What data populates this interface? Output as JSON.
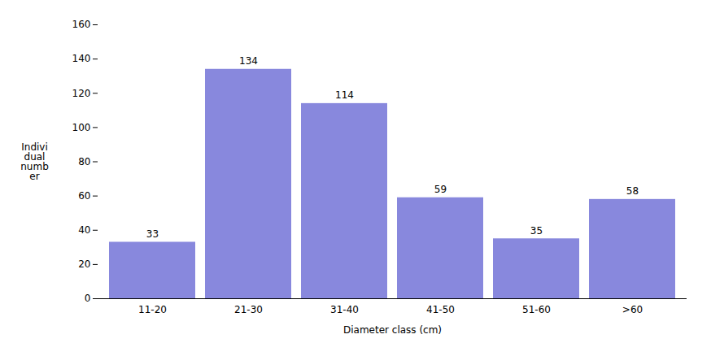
{
  "chart_data": {
    "type": "bar",
    "categories": [
      "11-20",
      "21-30",
      "31-40",
      "41-50",
      "51-60",
      ">60"
    ],
    "values": [
      33,
      134,
      114,
      59,
      35,
      58
    ],
    "color": "#8888dd",
    "xlabel": "Diameter class (cm)",
    "ylabel": "Indivi\ndual\nnumb\ner",
    "ylim": [
      0,
      160
    ],
    "yticks": [
      0,
      20,
      40,
      60,
      80,
      100,
      120,
      140,
      160
    ],
    "data_labels": true,
    "grid": false
  }
}
